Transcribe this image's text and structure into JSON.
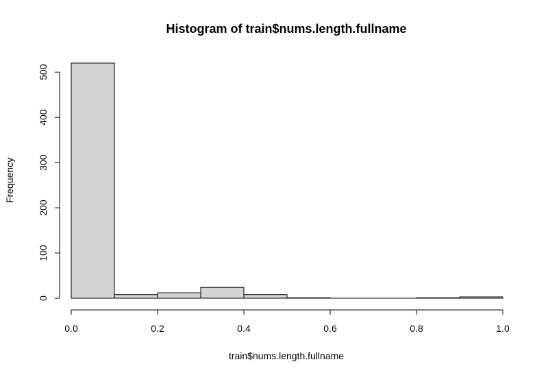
{
  "chart_data": {
    "type": "bar",
    "title": "Histogram of train$nums.length.fullname",
    "xlabel": "train$nums.length.fullname",
    "ylabel": "Frequency",
    "bins": [
      {
        "start": 0.0,
        "end": 0.1,
        "count": 520
      },
      {
        "start": 0.1,
        "end": 0.2,
        "count": 8
      },
      {
        "start": 0.2,
        "end": 0.3,
        "count": 12
      },
      {
        "start": 0.3,
        "end": 0.4,
        "count": 24
      },
      {
        "start": 0.4,
        "end": 0.5,
        "count": 8
      },
      {
        "start": 0.5,
        "end": 0.6,
        "count": 1
      },
      {
        "start": 0.6,
        "end": 0.7,
        "count": 0
      },
      {
        "start": 0.7,
        "end": 0.8,
        "count": 0
      },
      {
        "start": 0.8,
        "end": 0.9,
        "count": 1
      },
      {
        "start": 0.9,
        "end": 1.0,
        "count": 3
      }
    ],
    "xlim": [
      0,
      1
    ],
    "ylim": [
      0,
      520
    ],
    "x_ticks": [
      0.0,
      0.2,
      0.4,
      0.6,
      0.8,
      1.0
    ],
    "x_tick_labels": [
      "0.0",
      "0.2",
      "0.4",
      "0.6",
      "0.8",
      "1.0"
    ],
    "y_ticks": [
      0,
      100,
      200,
      300,
      400,
      500
    ],
    "y_tick_labels": [
      "0",
      "100",
      "200",
      "300",
      "400",
      "500"
    ],
    "grid": false,
    "colors": {
      "bar_fill": "#d3d3d3",
      "bar_stroke": "#000000"
    }
  }
}
